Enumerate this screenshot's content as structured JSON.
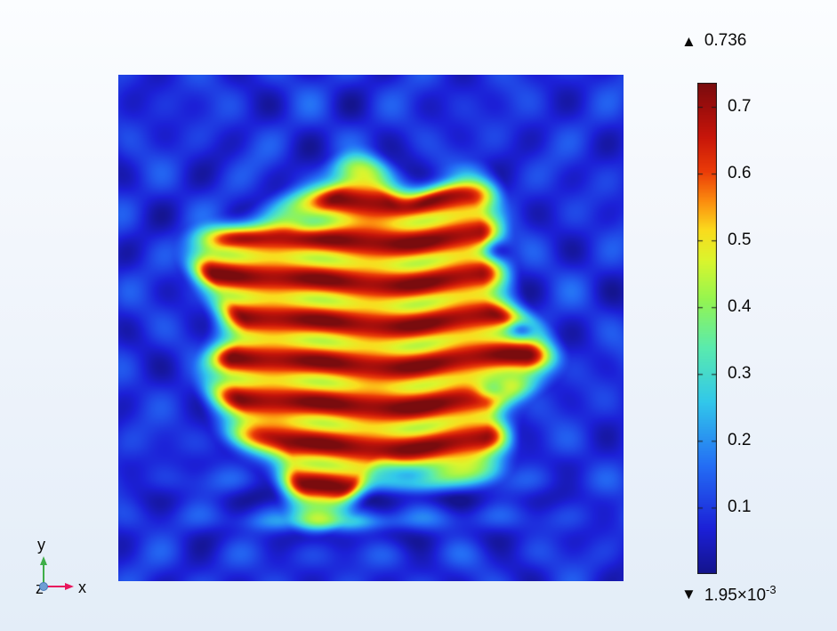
{
  "window": {
    "background_top": "#fbfdff",
    "background_bottom": "#e3edf8"
  },
  "chart_data": {
    "type": "heatmap",
    "title": "",
    "description": "2D surface plot of a simulated scalar field on a square domain: a roughly circular high-amplitude region (red/orange horizontal standing-wave bands) centered in the plot, surrounded by low-amplitude blue interference ripples.",
    "value_min": 0.00195,
    "value_max": 0.736,
    "max_label": "0.736",
    "min_mantissa": "1.95×10",
    "min_exponent": "-3",
    "max_marker_glyph": "▲",
    "min_marker_glyph": "▼",
    "legend_position": "right",
    "grid": false,
    "colorbar": {
      "orientation": "vertical",
      "ticks": [
        0.1,
        0.2,
        0.3,
        0.4,
        0.5,
        0.6,
        0.7
      ],
      "tick_labels": [
        "0.1",
        "0.2",
        "0.3",
        "0.4",
        "0.5",
        "0.6",
        "0.7"
      ],
      "colormap_name": "rainbow",
      "border_color": "#1b1b1b",
      "stops": [
        {
          "t": 0.0,
          "color": "#14148c"
        },
        {
          "t": 0.09,
          "color": "#1c20d7"
        },
        {
          "t": 0.22,
          "color": "#246ef5"
        },
        {
          "t": 0.35,
          "color": "#32c8eb"
        },
        {
          "t": 0.46,
          "color": "#5aebaf"
        },
        {
          "t": 0.56,
          "color": "#96f550"
        },
        {
          "t": 0.64,
          "color": "#dcf52d"
        },
        {
          "t": 0.7,
          "color": "#fadc1e"
        },
        {
          "t": 0.76,
          "color": "#fc8c0f"
        },
        {
          "t": 0.82,
          "color": "#eb3c08"
        },
        {
          "t": 0.89,
          "color": "#c8160a"
        },
        {
          "t": 0.95,
          "color": "#9e0e0c"
        },
        {
          "t": 1.0,
          "color": "#7a0c0e"
        }
      ]
    },
    "field": {
      "domain": "unit-square",
      "background_level": 0.085,
      "background_waves": [
        {
          "fx": 6.8,
          "fy": 6.8,
          "px": 0.15,
          "py": 0.35,
          "amp": 0.045
        },
        {
          "fx": 4.9,
          "fy": 3.8,
          "px": 0.42,
          "py": 0.12,
          "amp": 0.03
        },
        {
          "fx": 5.5,
          "fy": 5.5,
          "px": 0.2,
          "py": 0.85,
          "amp": 0.018
        }
      ],
      "bottom_streaks": {
        "freq": 12.6,
        "phase": 1.2,
        "amp": 0.055,
        "v_center": 0.84,
        "v_sigma": 0.1,
        "u_center": 0.5,
        "u_sigma": 0.35
      },
      "bg_bumps": [
        {
          "u": 0.42,
          "v": 0.885,
          "su": 0.13,
          "sv": 0.016,
          "gain": 0.12
        }
      ],
      "blob": {
        "cx": 0.495,
        "cy": 0.515,
        "radius": 0.335,
        "rim_wobble": [
          {
            "n": 7,
            "amp": 0.03,
            "phase": 1.2
          },
          {
            "n": 4,
            "amp": 0.022,
            "phase": -0.5
          },
          {
            "n": 11,
            "amp": 0.012,
            "phase": 0.0
          }
        ],
        "edge_soft_in": 0.055,
        "edge_soft_out": 0.035,
        "stripe_base": 0.6,
        "stripe_amp": 0.125,
        "stripe_freq": 12.3,
        "stripe_phase0": 2.0,
        "stripe_phase_wobble": [
          {
            "f": 1.4,
            "amp": 0.9,
            "phase": 0.3
          },
          {
            "f": 3.1,
            "amp": 0.35,
            "phase": 0.0
          }
        ],
        "hotspot_mod": {
          "fu": 5.2,
          "amp": 0.035,
          "phase": 1.0
        },
        "hot_spots": [
          {
            "u": 0.5,
            "v": 0.295,
            "su": 0.09,
            "sv": 0.035,
            "gain": 0.05
          },
          {
            "u": 0.3,
            "v": 0.7,
            "su": 0.08,
            "sv": 0.03,
            "gain": 0.04
          },
          {
            "u": 0.55,
            "v": 0.63,
            "su": 0.1,
            "sv": 0.03,
            "gain": 0.035
          }
        ],
        "dips": [
          {
            "u": 0.76,
            "v": 0.345,
            "su": 0.035,
            "sv": 0.022,
            "depth": 0.33
          },
          {
            "u": 0.8,
            "v": 0.5,
            "su": 0.03,
            "sv": 0.02,
            "depth": 0.3
          },
          {
            "u": 0.745,
            "v": 0.625,
            "su": 0.035,
            "sv": 0.02,
            "depth": 0.28
          },
          {
            "u": 0.62,
            "v": 0.185,
            "su": 0.06,
            "sv": 0.026,
            "depth": 0.35
          },
          {
            "u": 0.57,
            "v": 0.8,
            "su": 0.06,
            "sv": 0.022,
            "depth": 0.22
          },
          {
            "u": 0.38,
            "v": 0.3,
            "su": 0.05,
            "sv": 0.02,
            "depth": 0.15
          }
        ],
        "value_clamp": [
          0.002,
          0.7355
        ]
      }
    }
  },
  "axis_triad": {
    "x_label": "x",
    "y_label": "y",
    "z_label": "z",
    "x_color": "#e8175d",
    "y_color": "#3fae49",
    "z_dot_color": "#6f9ed4",
    "z_dot_stroke": "#4a7ab5"
  }
}
